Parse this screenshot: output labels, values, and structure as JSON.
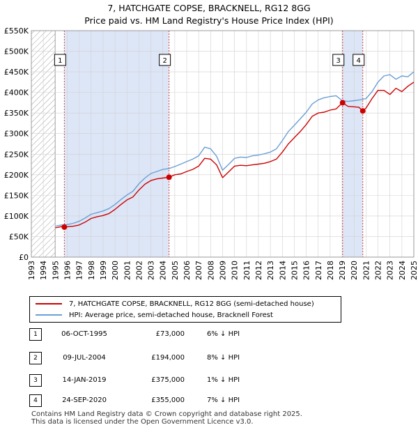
{
  "header": {
    "title_line1": "7, HATCHGATE COPSE, BRACKNELL, RG12 8GG",
    "title_line2": "Price paid vs. HM Land Registry's House Price Index (HPI)"
  },
  "colors": {
    "price_line": "#cc0000",
    "hpi_line": "#6a9fd4",
    "highlight_band": "#dde6f7",
    "grid": "#d0d0d0",
    "hatch": "#a0a0a0",
    "marker_line": "#d04040"
  },
  "chart_data": {
    "type": "line",
    "title": "Price paid vs. HM Land Registry's House Price Index (HPI)",
    "xlabel": "",
    "ylabel": "",
    "xlim": [
      1993,
      2025
    ],
    "ylim": [
      0,
      550000
    ],
    "x_ticks": [
      1993,
      1994,
      1995,
      1996,
      1997,
      1998,
      1999,
      2000,
      2001,
      2002,
      2003,
      2004,
      2005,
      2006,
      2007,
      2008,
      2009,
      2010,
      2011,
      2012,
      2013,
      2014,
      2015,
      2016,
      2017,
      2018,
      2019,
      2020,
      2021,
      2022,
      2023,
      2024,
      2025
    ],
    "y_ticks": [
      0,
      50000,
      100000,
      150000,
      200000,
      250000,
      300000,
      350000,
      400000,
      450000,
      500000,
      550000
    ],
    "y_tick_labels": [
      "£0",
      "£50K",
      "£100K",
      "£150K",
      "£200K",
      "£250K",
      "£300K",
      "£350K",
      "£400K",
      "£450K",
      "£500K",
      "£550K"
    ],
    "hatched_region": [
      1993,
      1995.0
    ],
    "highlight_bands": [
      [
        1995.76,
        2004.52
      ],
      [
        2019.04,
        2020.73
      ]
    ],
    "series": [
      {
        "name": "7, HATCHGATE COPSE, BRACKNELL, RG12 8GG (semi-detached house)",
        "color": "#cc0000",
        "x": [
          1995.0,
          1995.5,
          1995.76,
          1996.5,
          1997.0,
          1997.5,
          1998.0,
          1998.5,
          1999.0,
          1999.5,
          2000.0,
          2000.5,
          2001.0,
          2001.5,
          2002.0,
          2002.5,
          2003.0,
          2003.5,
          2004.0,
          2004.52,
          2005.0,
          2005.5,
          2006.0,
          2006.5,
          2007.0,
          2007.5,
          2008.0,
          2008.5,
          2009.0,
          2009.5,
          2010.0,
          2010.5,
          2011.0,
          2011.5,
          2012.0,
          2012.5,
          2013.0,
          2013.5,
          2014.0,
          2014.5,
          2015.0,
          2015.5,
          2016.0,
          2016.5,
          2017.0,
          2017.5,
          2018.0,
          2018.5,
          2019.04,
          2019.5,
          2020.0,
          2020.4,
          2020.73,
          2021.0,
          2021.5,
          2022.0,
          2022.5,
          2023.0,
          2023.5,
          2024.0,
          2024.5,
          2025.0
        ],
        "values": [
          71000,
          74000,
          73000,
          75000,
          78000,
          85000,
          94000,
          98000,
          101000,
          106000,
          116000,
          128000,
          139000,
          146000,
          163000,
          177000,
          186000,
          190000,
          192000,
          194000,
          200000,
          202000,
          208000,
          213000,
          221000,
          240000,
          238000,
          224000,
          193000,
          207000,
          221000,
          223000,
          222000,
          224000,
          226000,
          228000,
          232000,
          238000,
          255000,
          275000,
          290000,
          305000,
          322000,
          342000,
          350000,
          352000,
          357000,
          360000,
          375000,
          366000,
          365000,
          364000,
          355000,
          362000,
          385000,
          405000,
          405000,
          395000,
          410000,
          402000,
          415000,
          425000
        ]
      },
      {
        "name": "HPI: Average price, semi-detached house, Bracknell Forest",
        "color": "#6a9fd4",
        "x": [
          1995.0,
          1995.5,
          1996.0,
          1996.5,
          1997.0,
          1997.5,
          1998.0,
          1998.5,
          1999.0,
          1999.5,
          2000.0,
          2000.5,
          2001.0,
          2001.5,
          2002.0,
          2002.5,
          2003.0,
          2003.5,
          2004.0,
          2004.5,
          2005.0,
          2005.5,
          2006.0,
          2006.5,
          2007.0,
          2007.5,
          2008.0,
          2008.5,
          2009.0,
          2009.5,
          2010.0,
          2010.5,
          2011.0,
          2011.5,
          2012.0,
          2012.5,
          2013.0,
          2013.5,
          2014.0,
          2014.5,
          2015.0,
          2015.5,
          2016.0,
          2016.5,
          2017.0,
          2017.5,
          2018.0,
          2018.5,
          2019.0,
          2019.5,
          2020.0,
          2020.5,
          2021.0,
          2021.5,
          2022.0,
          2022.5,
          2023.0,
          2023.5,
          2024.0,
          2024.5,
          2025.0
        ],
        "values": [
          75000,
          78000,
          79000,
          82000,
          87000,
          95000,
          104000,
          108000,
          112000,
          118000,
          128000,
          140000,
          151000,
          160000,
          178000,
          192000,
          203000,
          208000,
          213000,
          215000,
          220000,
          226000,
          232000,
          238000,
          246000,
          267000,
          263000,
          245000,
          211000,
          225000,
          240000,
          243000,
          242000,
          246000,
          248000,
          251000,
          255000,
          263000,
          283000,
          305000,
          320000,
          336000,
          352000,
          372000,
          382000,
          387000,
          390000,
          392000,
          380000,
          378000,
          380000,
          382000,
          385000,
          402000,
          425000,
          440000,
          443000,
          432000,
          440000,
          438000,
          450000
        ]
      }
    ],
    "sales": [
      {
        "num": "1",
        "x": 1995.76,
        "value": 73000
      },
      {
        "num": "2",
        "x": 2004.52,
        "value": 194000
      },
      {
        "num": "3",
        "x": 2019.04,
        "value": 375000
      },
      {
        "num": "4",
        "x": 2020.73,
        "value": 355000
      }
    ]
  },
  "legend": {
    "price_label": "7, HATCHGATE COPSE, BRACKNELL, RG12 8GG (semi-detached house)",
    "hpi_label": "HPI: Average price, semi-detached house, Bracknell Forest"
  },
  "table": {
    "rows": [
      {
        "num": "1",
        "date": "06-OCT-1995",
        "price": "£73,000",
        "hpi": "6% ↓ HPI"
      },
      {
        "num": "2",
        "date": "09-JUL-2004",
        "price": "£194,000",
        "hpi": "8% ↓ HPI"
      },
      {
        "num": "3",
        "date": "14-JAN-2019",
        "price": "£375,000",
        "hpi": "1% ↓ HPI"
      },
      {
        "num": "4",
        "date": "24-SEP-2020",
        "price": "£355,000",
        "hpi": "7% ↓ HPI"
      }
    ]
  },
  "footer": {
    "line1": "Contains HM Land Registry data © Crown copyright and database right 2025.",
    "line2": "This data is licensed under the Open Government Licence v3.0."
  }
}
